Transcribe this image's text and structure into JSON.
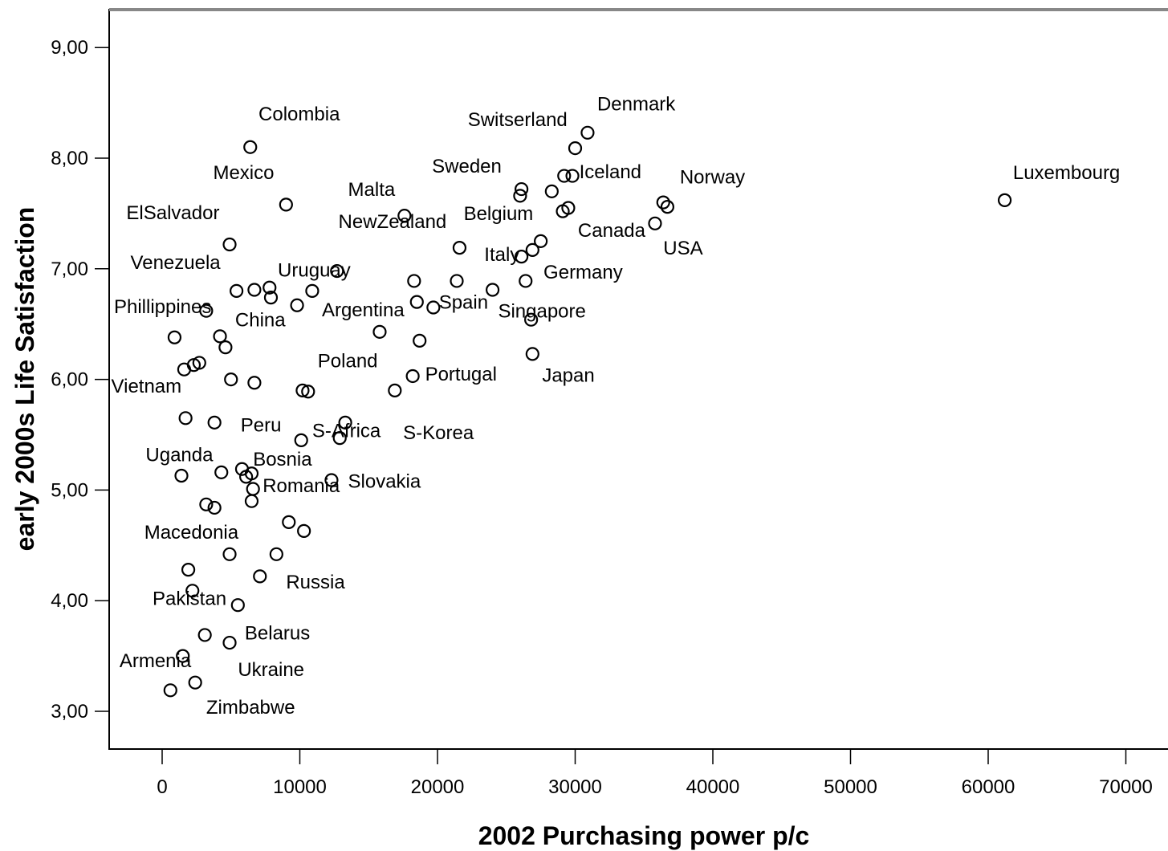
{
  "chart_data": {
    "type": "scatter",
    "title": "",
    "xlabel": "2002 Purchasing power p/c",
    "ylabel": "early 2000s Life Satisfaction",
    "xlim": [
      -4000,
      73000
    ],
    "ylim": [
      2.65,
      9.35
    ],
    "x_ticks": [
      0,
      10000,
      20000,
      30000,
      40000,
      50000,
      60000,
      70000
    ],
    "x_tick_labels": [
      "0",
      "10000",
      "20000",
      "30000",
      "40000",
      "50000",
      "60000",
      "70000"
    ],
    "y_ticks": [
      3,
      4,
      5,
      6,
      7,
      8,
      9
    ],
    "y_tick_labels": [
      "3,00",
      "4,00",
      "5,00",
      "6,00",
      "7,00",
      "8,00",
      "9,00"
    ],
    "grid": false,
    "legend": "none",
    "marker": "open-circle",
    "points": [
      {
        "x": 6400,
        "y": 8.1
      },
      {
        "x": 9000,
        "y": 7.58
      },
      {
        "x": 4900,
        "y": 7.22
      },
      {
        "x": 3200,
        "y": 6.62
      },
      {
        "x": 900,
        "y": 6.38
      },
      {
        "x": 1600,
        "y": 6.09
      },
      {
        "x": 2300,
        "y": 6.13
      },
      {
        "x": 2700,
        "y": 6.15
      },
      {
        "x": 5400,
        "y": 6.8
      },
      {
        "x": 6700,
        "y": 6.81
      },
      {
        "x": 7800,
        "y": 6.83
      },
      {
        "x": 7900,
        "y": 6.74
      },
      {
        "x": 9800,
        "y": 6.67
      },
      {
        "x": 10900,
        "y": 6.8
      },
      {
        "x": 4200,
        "y": 6.39
      },
      {
        "x": 4600,
        "y": 6.29
      },
      {
        "x": 5000,
        "y": 6.0
      },
      {
        "x": 6700,
        "y": 5.97
      },
      {
        "x": 10200,
        "y": 5.9
      },
      {
        "x": 10600,
        "y": 5.89
      },
      {
        "x": 1700,
        "y": 5.65
      },
      {
        "x": 3800,
        "y": 5.61
      },
      {
        "x": 13300,
        "y": 5.61
      },
      {
        "x": 10100,
        "y": 5.45
      },
      {
        "x": 12900,
        "y": 5.47
      },
      {
        "x": 1400,
        "y": 5.13
      },
      {
        "x": 4300,
        "y": 5.16
      },
      {
        "x": 5800,
        "y": 5.19
      },
      {
        "x": 6100,
        "y": 5.12
      },
      {
        "x": 6500,
        "y": 5.15
      },
      {
        "x": 6600,
        "y": 5.01
      },
      {
        "x": 6500,
        "y": 4.9
      },
      {
        "x": 12300,
        "y": 5.09
      },
      {
        "x": 3200,
        "y": 4.87
      },
      {
        "x": 3800,
        "y": 4.84
      },
      {
        "x": 9200,
        "y": 4.71
      },
      {
        "x": 10300,
        "y": 4.63
      },
      {
        "x": 4900,
        "y": 4.42
      },
      {
        "x": 8300,
        "y": 4.42
      },
      {
        "x": 1900,
        "y": 4.28
      },
      {
        "x": 7100,
        "y": 4.22
      },
      {
        "x": 2200,
        "y": 4.09
      },
      {
        "x": 5500,
        "y": 3.96
      },
      {
        "x": 3100,
        "y": 3.69
      },
      {
        "x": 4900,
        "y": 3.62
      },
      {
        "x": 1500,
        "y": 3.5
      },
      {
        "x": 2400,
        "y": 3.26
      },
      {
        "x": 600,
        "y": 3.19
      },
      {
        "x": 12700,
        "y": 6.98
      },
      {
        "x": 15800,
        "y": 6.43
      },
      {
        "x": 18300,
        "y": 6.89
      },
      {
        "x": 18500,
        "y": 6.7
      },
      {
        "x": 19700,
        "y": 6.65
      },
      {
        "x": 18700,
        "y": 6.35
      },
      {
        "x": 18200,
        "y": 6.03
      },
      {
        "x": 16900,
        "y": 5.9
      },
      {
        "x": 17600,
        "y": 7.48
      },
      {
        "x": 21600,
        "y": 7.19
      },
      {
        "x": 21400,
        "y": 6.89
      },
      {
        "x": 24000,
        "y": 6.81
      },
      {
        "x": 26100,
        "y": 7.72
      },
      {
        "x": 26000,
        "y": 7.66
      },
      {
        "x": 28300,
        "y": 7.7
      },
      {
        "x": 29200,
        "y": 7.84
      },
      {
        "x": 29800,
        "y": 7.84
      },
      {
        "x": 30000,
        "y": 8.09
      },
      {
        "x": 30900,
        "y": 8.23
      },
      {
        "x": 29100,
        "y": 7.52
      },
      {
        "x": 29500,
        "y": 7.55
      },
      {
        "x": 26100,
        "y": 7.11
      },
      {
        "x": 26900,
        "y": 7.17
      },
      {
        "x": 27500,
        "y": 7.25
      },
      {
        "x": 26400,
        "y": 6.89
      },
      {
        "x": 26800,
        "y": 6.54
      },
      {
        "x": 26900,
        "y": 6.23
      },
      {
        "x": 35800,
        "y": 7.41
      },
      {
        "x": 36400,
        "y": 7.6
      },
      {
        "x": 36700,
        "y": 7.56
      },
      {
        "x": 61200,
        "y": 7.62
      }
    ],
    "annotations": [
      {
        "text": "Colombia",
        "x": 7000,
        "y": 8.34
      },
      {
        "text": "Mexico",
        "x": 3700,
        "y": 7.81
      },
      {
        "text": "ElSalvador",
        "x": -2600,
        "y": 7.45
      },
      {
        "text": "Venezuela",
        "x": -2300,
        "y": 7.0
      },
      {
        "text": "Uruguay",
        "x": 8400,
        "y": 6.93
      },
      {
        "text": "Phillippines",
        "x": -3500,
        "y": 6.6
      },
      {
        "text": "China",
        "x": 5300,
        "y": 6.48
      },
      {
        "text": "Argentina",
        "x": 11600,
        "y": 6.57
      },
      {
        "text": "Spain",
        "x": 20100,
        "y": 6.64
      },
      {
        "text": "Poland",
        "x": 11300,
        "y": 6.11
      },
      {
        "text": "Portugal",
        "x": 19100,
        "y": 5.99
      },
      {
        "text": "Vietnam",
        "x": -3700,
        "y": 5.88
      },
      {
        "text": "Peru",
        "x": 5700,
        "y": 5.53
      },
      {
        "text": "S-Africa",
        "x": 10900,
        "y": 5.48
      },
      {
        "text": "S-Korea",
        "x": 17500,
        "y": 5.46
      },
      {
        "text": "Uganda",
        "x": -1200,
        "y": 5.26
      },
      {
        "text": "Bosnia",
        "x": 6600,
        "y": 5.22
      },
      {
        "text": "Slovakia",
        "x": 13500,
        "y": 5.02
      },
      {
        "text": "Romania",
        "x": 7300,
        "y": 4.98
      },
      {
        "text": "Macedonia",
        "x": -1300,
        "y": 4.56
      },
      {
        "text": "Russia",
        "x": 9000,
        "y": 4.11
      },
      {
        "text": "Pakistan",
        "x": -700,
        "y": 3.96
      },
      {
        "text": "Belarus",
        "x": 6000,
        "y": 3.65
      },
      {
        "text": "Armenia",
        "x": -3100,
        "y": 3.4
      },
      {
        "text": "Ukraine",
        "x": 5500,
        "y": 3.32
      },
      {
        "text": "Zimbabwe",
        "x": 3200,
        "y": 2.98
      },
      {
        "text": "Malta",
        "x": 13500,
        "y": 7.66
      },
      {
        "text": "NewZealand",
        "x": 12800,
        "y": 7.37
      },
      {
        "text": "Belgium",
        "x": 21900,
        "y": 7.44
      },
      {
        "text": "Sweden",
        "x": 19600,
        "y": 7.87
      },
      {
        "text": "Switserland",
        "x": 22200,
        "y": 8.29
      },
      {
        "text": "Denmark",
        "x": 31600,
        "y": 8.43
      },
      {
        "text": "Iceland",
        "x": 30300,
        "y": 7.82
      },
      {
        "text": "Norway",
        "x": 37600,
        "y": 7.77
      },
      {
        "text": "Luxembourg",
        "x": 61800,
        "y": 7.81
      },
      {
        "text": "Canada",
        "x": 30200,
        "y": 7.29
      },
      {
        "text": "USA",
        "x": 36400,
        "y": 7.13
      },
      {
        "text": "Italy",
        "x": 23400,
        "y": 7.07
      },
      {
        "text": "Germany",
        "x": 27700,
        "y": 6.91
      },
      {
        "text": "Singapore",
        "x": 24400,
        "y": 6.56
      },
      {
        "text": "Japan",
        "x": 27600,
        "y": 5.98
      }
    ]
  }
}
